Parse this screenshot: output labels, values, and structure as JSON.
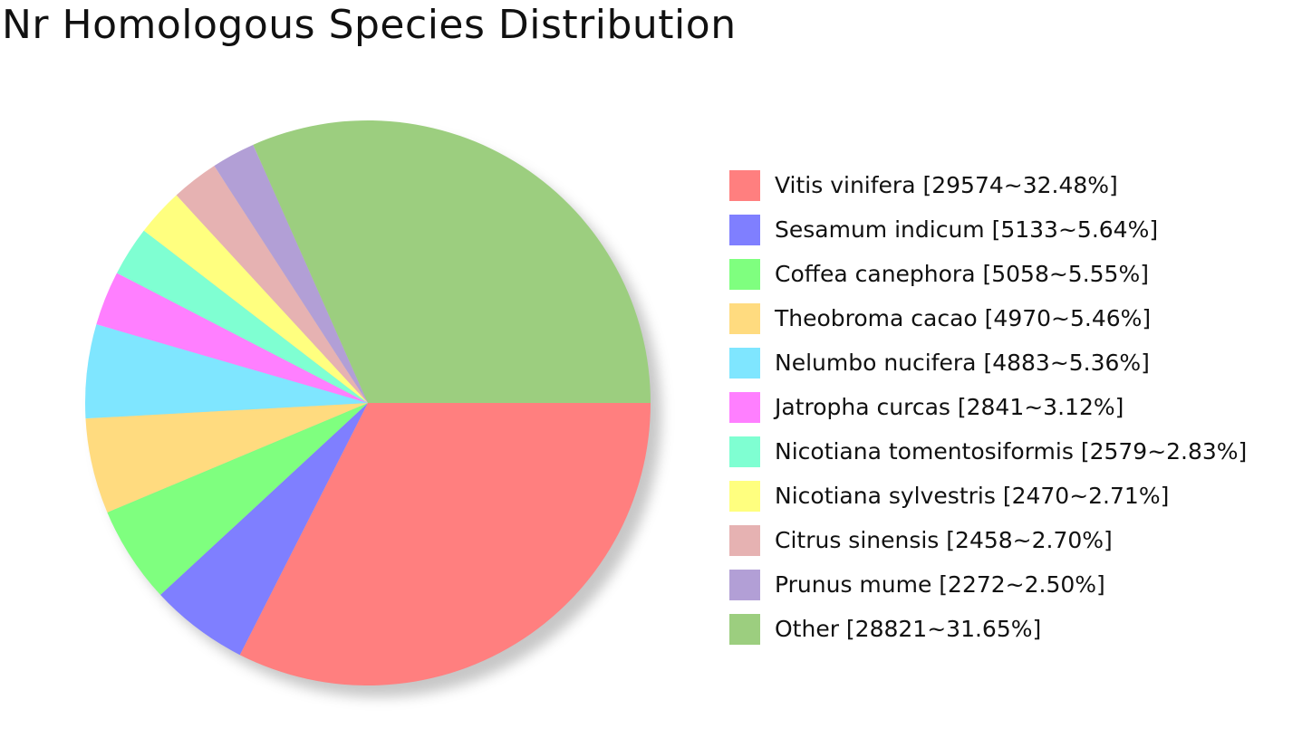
{
  "chart_data": {
    "type": "pie",
    "title": "Nr Homologous Species Distribution",
    "legend_position": "right",
    "slices": [
      {
        "label": "Vitis vinifera [29574~32.48%]",
        "name": "Vitis vinifera",
        "value": 29574,
        "percent": 32.48,
        "color": "#ff7f7f"
      },
      {
        "label": "Sesamum indicum [5133~5.64%]",
        "name": "Sesamum indicum",
        "value": 5133,
        "percent": 5.64,
        "color": "#7f7fff"
      },
      {
        "label": "Coffea canephora [5058~5.55%]",
        "name": "Coffea canephora",
        "value": 5058,
        "percent": 5.55,
        "color": "#7fff7f"
      },
      {
        "label": "Theobroma cacao [4970~5.46%]",
        "name": "Theobroma cacao",
        "value": 4970,
        "percent": 5.46,
        "color": "#ffdb7f"
      },
      {
        "label": "Nelumbo nucifera [4883~5.36%]",
        "name": "Nelumbo nucifera",
        "value": 4883,
        "percent": 5.36,
        "color": "#7fe6ff"
      },
      {
        "label": "Jatropha curcas [2841~3.12%]",
        "name": "Jatropha curcas",
        "value": 2841,
        "percent": 3.12,
        "color": "#ff7fff"
      },
      {
        "label": "Nicotiana tomentosiformis [2579~2.83%]",
        "name": "Nicotiana tomentosiformis",
        "value": 2579,
        "percent": 2.83,
        "color": "#7fffd2"
      },
      {
        "label": "Nicotiana sylvestris [2470~2.71%]",
        "name": "Nicotiana sylvestris",
        "value": 2470,
        "percent": 2.71,
        "color": "#ffff7f"
      },
      {
        "label": "Citrus sinensis [2458~2.70%]",
        "name": "Citrus sinensis",
        "value": 2458,
        "percent": 2.7,
        "color": "#e6b2b2"
      },
      {
        "label": "Prunus mume [2272~2.50%]",
        "name": "Prunus mume",
        "value": 2272,
        "percent": 2.5,
        "color": "#b29fd6"
      },
      {
        "label": "Other [28821~31.65%]",
        "name": "Other",
        "value": 28821,
        "percent": 31.65,
        "color": "#9cce7f"
      }
    ]
  }
}
